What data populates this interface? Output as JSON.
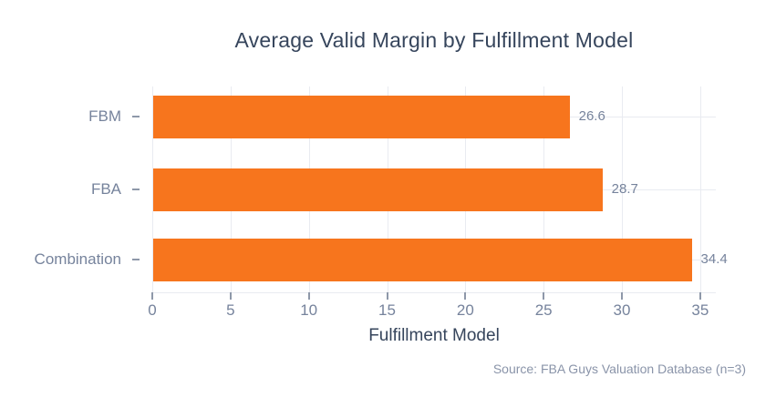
{
  "title": "Average Valid Margin by Fulfillment Model",
  "chart_data": {
    "type": "bar",
    "orientation": "horizontal",
    "title": "Average Valid Margin by Fulfillment Model",
    "categories": [
      "FBM",
      "FBA",
      "Combination"
    ],
    "values": [
      26.6,
      28.7,
      34.4
    ],
    "value_labels": [
      "26.6",
      "28.7",
      "34.4"
    ],
    "xlabel": "Fulfillment Model",
    "ylabel": "",
    "xlim": [
      0,
      36
    ],
    "xticks": [
      0,
      5,
      10,
      15,
      20,
      25,
      30,
      35
    ],
    "grid": true,
    "legend": false,
    "bar_color": "#f7751d"
  },
  "source_note": "Source: FBA Guys Valuation Database (n=3)",
  "colors": {
    "bar": "#f7751d",
    "gridline": "#e9ebf1",
    "tick_mark": "#8e98a9",
    "tick_label": "#76839c",
    "title_text": "#36455c",
    "source_text": "#8a94a9",
    "background": "#ffffff"
  }
}
